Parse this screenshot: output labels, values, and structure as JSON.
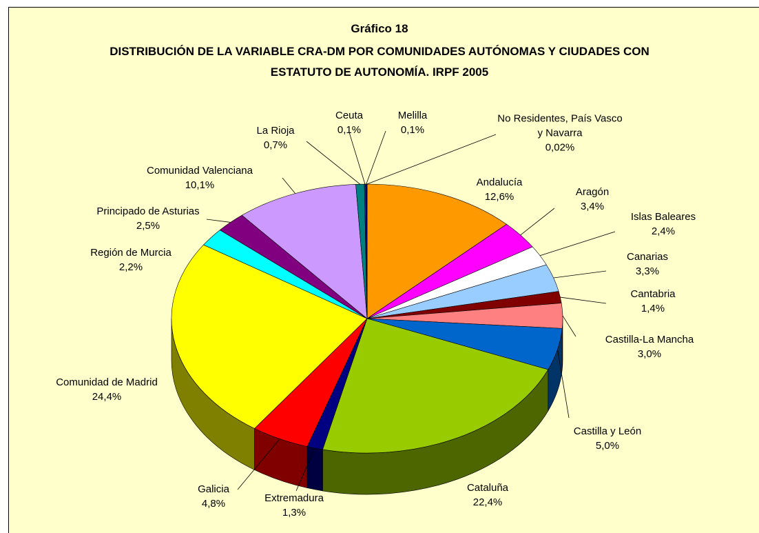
{
  "chart_data": {
    "type": "pie3d",
    "title": "Gráfico 18",
    "subtitle": "DISTRIBUCIÓN DE LA VARIABLE CRA-DM POR COMUNIDADES AUTÓNOMAS Y CIUDADES CON ESTATUTO DE AUTONOMÍA. IRPF 2005",
    "categories": [
      "Andalucía",
      "Aragón",
      "Islas Baleares",
      "Canarias",
      "Cantabria",
      "Castilla-La Mancha",
      "Castilla y León",
      "Cataluña",
      "Extremadura",
      "Galicia",
      "Comunidad de Madrid",
      "Región de Murcia",
      "Principado de Asturias",
      "Comunidad Valenciana",
      "La Rioja",
      "Ceuta",
      "Melilla",
      "No Residentes, País Vasco y Navarra"
    ],
    "values": [
      12.6,
      3.4,
      2.4,
      3.3,
      1.4,
      3.0,
      5.0,
      22.4,
      1.3,
      4.8,
      24.4,
      2.2,
      2.5,
      10.1,
      0.7,
      0.1,
      0.1,
      0.02
    ],
    "value_labels": [
      "12,6%",
      "3,4%",
      "2,4%",
      "3,3%",
      "1,4%",
      "3,0%",
      "5,0%",
      "22,4%",
      "1,3%",
      "4,8%",
      "24,4%",
      "2,2%",
      "2,5%",
      "10,1%",
      "0,7%",
      "0,1%",
      "0,1%",
      "0,02%"
    ],
    "colors": [
      "#ff9900",
      "#ff00ff",
      "#ffffff",
      "#99ccff",
      "#800000",
      "#ff8080",
      "#0066cc",
      "#99cc00",
      "#000080",
      "#ff0000",
      "#ffff00",
      "#00ffff",
      "#800080",
      "#cc99ff",
      "#008080",
      "#333399",
      "#0000ff",
      "#3366ff"
    ]
  }
}
